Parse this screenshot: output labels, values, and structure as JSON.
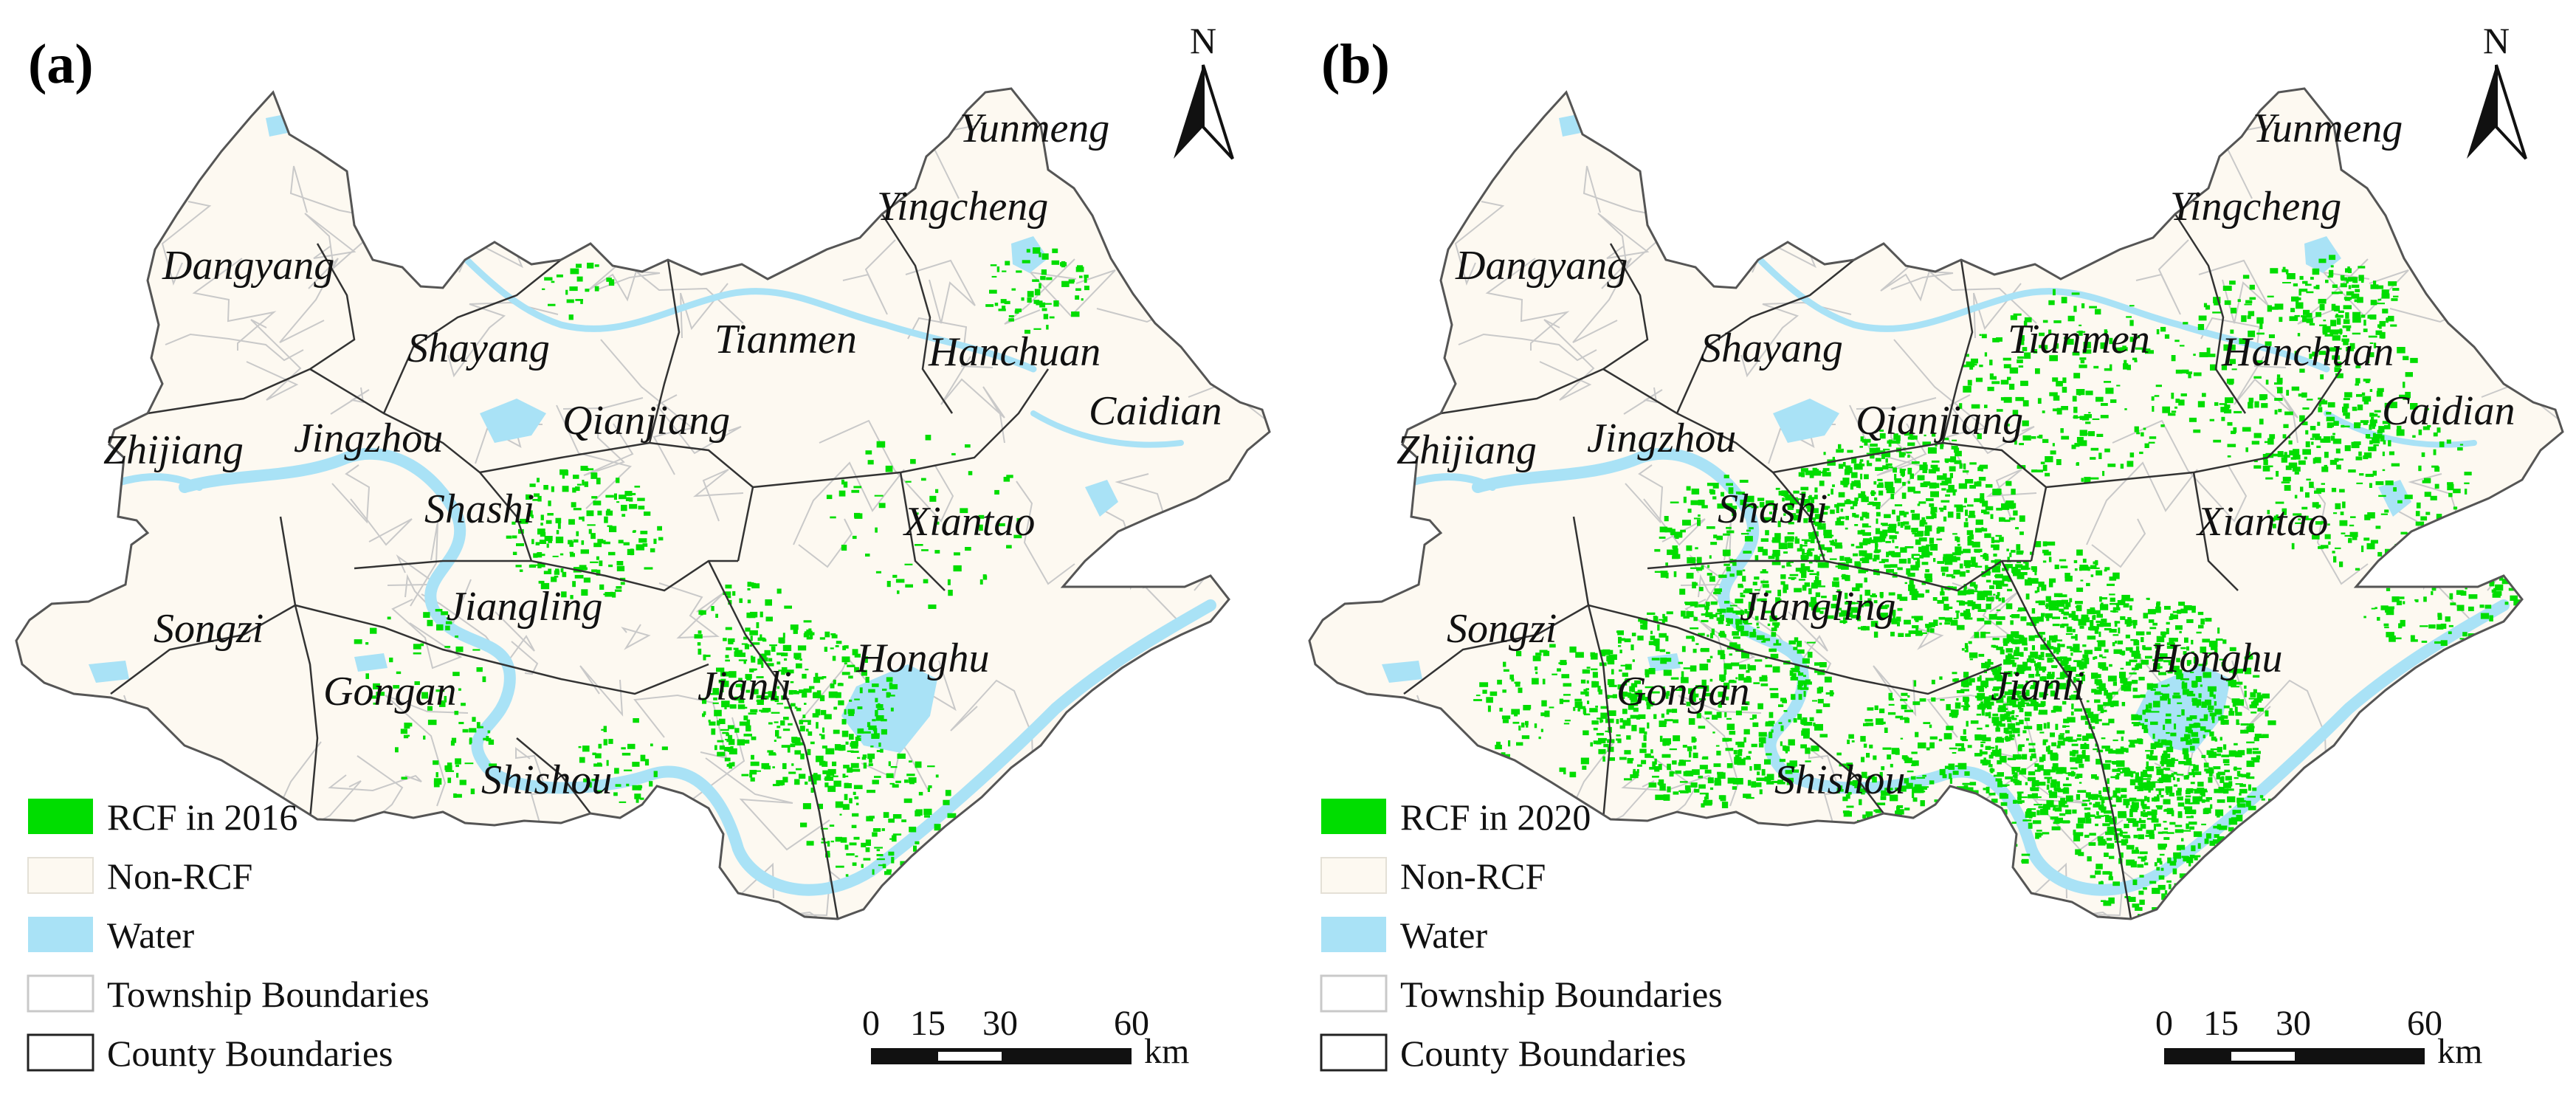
{
  "colors": {
    "rcf": "#00dd00",
    "non_rcf": "#fdf9f1",
    "water": "#a9e2f6",
    "township": "#c9c9c9",
    "county": "#333333"
  },
  "north_label": "N",
  "panels": [
    {
      "id": "a",
      "label": "(a)",
      "rcf_legend": "RCF in 2016",
      "rcf_density": 0.35,
      "places": [
        "Yunmeng",
        "Yingcheng",
        "Dangyang",
        "Shayang",
        "Tianmen",
        "Hanchuan",
        "Caidian",
        "Qianjiang",
        "Zhijiang",
        "Jingzhou",
        "Shashi",
        "Xiantao",
        "Jiangling",
        "Songzi",
        "Gongan",
        "Jianli",
        "Honghu",
        "Shishou"
      ]
    },
    {
      "id": "b",
      "label": "(b)",
      "rcf_legend": "RCF in 2020",
      "rcf_density": 1.0,
      "places": [
        "Yunmeng",
        "Yingcheng",
        "Dangyang",
        "Shayang",
        "Tianmen",
        "Hanchuan",
        "Caidian",
        "Qianjiang",
        "Zhijiang",
        "Jingzhou",
        "Shashi",
        "Xiantao",
        "Jiangling",
        "Songzi",
        "Gongan",
        "Jianli",
        "Honghu",
        "Shishou"
      ]
    }
  ],
  "legend_common": {
    "non_rcf": "Non-RCF",
    "water": "Water",
    "township": "Township Boundaries",
    "county": "County Boundaries"
  },
  "scale_bar": {
    "ticks": [
      "0",
      "15",
      "30",
      "60"
    ],
    "unit": "km"
  }
}
